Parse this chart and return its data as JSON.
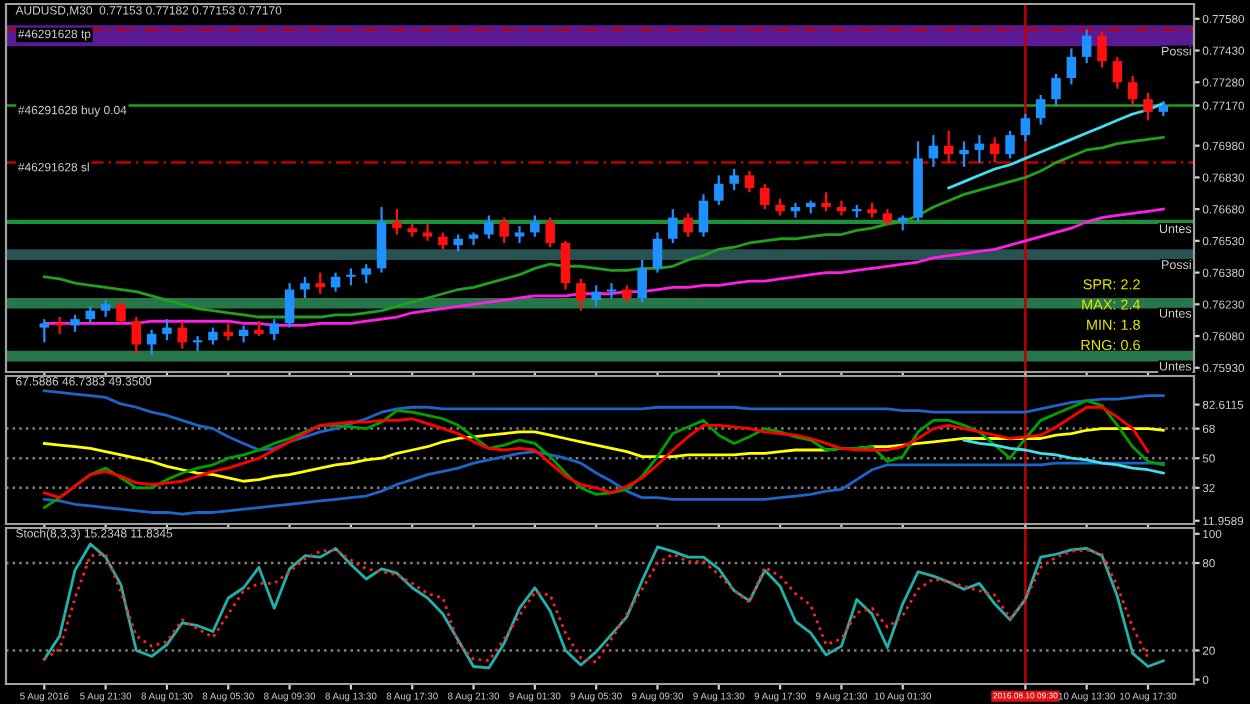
{
  "chart_data": [
    {
      "type": "candlestick",
      "title": "AUDUSD,M30  0.77153 0.77182 0.77153 0.77170",
      "categories": [
        "5 Aug 2016",
        null,
        null,
        null,
        "5 Aug 21:30",
        null,
        null,
        null,
        "8 Aug 01:30",
        null,
        null,
        null,
        "8 Aug 05:30",
        null,
        null,
        null,
        "8 Aug 09:30",
        null,
        null,
        null,
        "8 Aug 13:30",
        null,
        null,
        null,
        "8 Aug 17:30",
        null,
        null,
        null,
        "8 Aug 21:30",
        null,
        null,
        null,
        "9 Aug 01:30",
        null,
        null,
        null,
        "9 Aug 05:30",
        null,
        null,
        null,
        "9 Aug 09:30",
        null,
        null,
        null,
        "9 Aug 13:30",
        null,
        null,
        null,
        "9 Aug 17:30",
        null,
        null,
        null,
        "9 Aug 21:30",
        null,
        null,
        null,
        "10 Aug 01:30",
        null,
        null,
        null,
        null,
        null,
        null,
        null,
        "2016.08.10 09:30",
        null,
        null,
        null,
        "10 Aug 13:30",
        null,
        null,
        null,
        "10 Aug 17:30",
        null
      ],
      "ohlc": [
        [
          0.7612,
          0.7616,
          0.7605,
          0.7614
        ],
        [
          0.7614,
          0.7617,
          0.7609,
          0.7613
        ],
        [
          0.7613,
          0.7618,
          0.761,
          0.7616
        ],
        [
          0.7616,
          0.7622,
          0.7614,
          0.762
        ],
        [
          0.762,
          0.7625,
          0.7617,
          0.7623
        ],
        [
          0.7623,
          0.7624,
          0.7614,
          0.7615
        ],
        [
          0.7615,
          0.7617,
          0.76,
          0.7604
        ],
        [
          0.7604,
          0.7611,
          0.7599,
          0.7609
        ],
        [
          0.7609,
          0.7616,
          0.7606,
          0.7612
        ],
        [
          0.7612,
          0.7615,
          0.7602,
          0.7605
        ],
        [
          0.7605,
          0.7608,
          0.7601,
          0.7606
        ],
        [
          0.7606,
          0.7612,
          0.7604,
          0.761
        ],
        [
          0.761,
          0.7614,
          0.7606,
          0.7608
        ],
        [
          0.7608,
          0.7613,
          0.7605,
          0.7611
        ],
        [
          0.7611,
          0.7615,
          0.7608,
          0.7609
        ],
        [
          0.7609,
          0.7616,
          0.7606,
          0.7614
        ],
        [
          0.7614,
          0.7633,
          0.7612,
          0.763
        ],
        [
          0.763,
          0.7636,
          0.7626,
          0.7633
        ],
        [
          0.7633,
          0.7638,
          0.7628,
          0.7631
        ],
        [
          0.7631,
          0.7638,
          0.7629,
          0.7636
        ],
        [
          0.7636,
          0.764,
          0.7632,
          0.7637
        ],
        [
          0.7637,
          0.7642,
          0.7633,
          0.764
        ],
        [
          0.764,
          0.7669,
          0.7638,
          0.7662
        ],
        [
          0.7662,
          0.7668,
          0.7656,
          0.7659
        ],
        [
          0.7659,
          0.7661,
          0.7655,
          0.7657
        ],
        [
          0.7657,
          0.7661,
          0.7653,
          0.7655
        ],
        [
          0.7655,
          0.7657,
          0.7649,
          0.7651
        ],
        [
          0.7651,
          0.7656,
          0.7648,
          0.7654
        ],
        [
          0.7654,
          0.7657,
          0.7651,
          0.7656
        ],
        [
          0.7656,
          0.7665,
          0.7654,
          0.7662
        ],
        [
          0.7662,
          0.7664,
          0.7652,
          0.7655
        ],
        [
          0.7655,
          0.766,
          0.7652,
          0.7657
        ],
        [
          0.7657,
          0.7665,
          0.7655,
          0.7662
        ],
        [
          0.7662,
          0.7664,
          0.765,
          0.7652
        ],
        [
          0.7652,
          0.7653,
          0.763,
          0.7633
        ],
        [
          0.7633,
          0.7635,
          0.762,
          0.7625
        ],
        [
          0.7625,
          0.7632,
          0.7622,
          0.7629
        ],
        [
          0.7629,
          0.7633,
          0.7626,
          0.763
        ],
        [
          0.763,
          0.7632,
          0.7624,
          0.7626
        ],
        [
          0.7626,
          0.7644,
          0.7624,
          0.764
        ],
        [
          0.764,
          0.7657,
          0.7638,
          0.7654
        ],
        [
          0.7654,
          0.7668,
          0.7652,
          0.7664
        ],
        [
          0.7664,
          0.7666,
          0.7655,
          0.7657
        ],
        [
          0.7657,
          0.7675,
          0.7655,
          0.7672
        ],
        [
          0.7672,
          0.7684,
          0.767,
          0.768
        ],
        [
          0.768,
          0.7687,
          0.7677,
          0.7684
        ],
        [
          0.7684,
          0.7686,
          0.7676,
          0.7678
        ],
        [
          0.7678,
          0.768,
          0.7668,
          0.767
        ],
        [
          0.767,
          0.7673,
          0.7665,
          0.7667
        ],
        [
          0.7667,
          0.7671,
          0.7664,
          0.7669
        ],
        [
          0.7669,
          0.7672,
          0.7666,
          0.7671
        ],
        [
          0.7671,
          0.7676,
          0.7667,
          0.7669
        ],
        [
          0.7669,
          0.7672,
          0.7665,
          0.7667
        ],
        [
          0.7667,
          0.767,
          0.7664,
          0.7668
        ],
        [
          0.7668,
          0.7671,
          0.7664,
          0.7666
        ],
        [
          0.7666,
          0.7668,
          0.766,
          0.7662
        ],
        [
          0.7662,
          0.7665,
          0.7658,
          0.7664
        ],
        [
          0.7664,
          0.77,
          0.7662,
          0.7692
        ],
        [
          0.7692,
          0.7703,
          0.7688,
          0.7698
        ],
        [
          0.7698,
          0.7705,
          0.769,
          0.7694
        ],
        [
          0.7694,
          0.77,
          0.7688,
          0.7696
        ],
        [
          0.7696,
          0.7703,
          0.769,
          0.7699
        ],
        [
          0.7699,
          0.7702,
          0.769,
          0.7694
        ],
        [
          0.7694,
          0.7705,
          0.7692,
          0.7703
        ],
        [
          0.7703,
          0.7713,
          0.77,
          0.7711
        ],
        [
          0.7711,
          0.7722,
          0.7708,
          0.772
        ],
        [
          0.772,
          0.7732,
          0.7717,
          0.773
        ],
        [
          0.773,
          0.7744,
          0.7727,
          0.774
        ],
        [
          0.774,
          0.7753,
          0.7737,
          0.775
        ],
        [
          0.775,
          0.7752,
          0.7735,
          0.7738
        ],
        [
          0.7738,
          0.774,
          0.7725,
          0.7728
        ],
        [
          0.7728,
          0.7731,
          0.7717,
          0.772
        ],
        [
          0.772,
          0.7723,
          0.771,
          0.7714
        ],
        [
          0.7714,
          0.7719,
          0.7712,
          0.7717
        ]
      ],
      "series": [
        {
          "type": "line",
          "color": "#1fa01f",
          "values": [
            0.7636,
            0.7635,
            0.7633,
            0.7632,
            0.7631,
            0.763,
            0.7629,
            0.7627,
            0.7625,
            0.7623,
            0.7621,
            0.762,
            0.7619,
            0.7618,
            0.7617,
            0.7617,
            0.7617,
            0.7617,
            0.7617,
            0.7618,
            0.7618,
            0.7619,
            0.762,
            0.7622,
            0.7624,
            0.7626,
            0.7628,
            0.763,
            0.7631,
            0.7633,
            0.7635,
            0.7637,
            0.764,
            0.7642,
            0.7641,
            0.7641,
            0.764,
            0.7639,
            0.7639,
            0.764,
            0.764,
            0.7641,
            0.7644,
            0.7646,
            0.7649,
            0.765,
            0.7652,
            0.7653,
            0.7654,
            0.7654,
            0.7655,
            0.7656,
            0.7656,
            0.7658,
            0.7659,
            0.7661,
            0.7662,
            0.7665,
            0.7669,
            0.7672,
            0.7675,
            0.7677,
            0.7679,
            0.7681,
            0.7683,
            0.7686,
            0.769,
            0.7693,
            0.7696,
            0.7697,
            0.7699,
            0.77,
            0.7701,
            0.7702
          ]
        },
        {
          "type": "line",
          "color": "#ff1ee6",
          "values": [
            0.7614,
            0.7614,
            0.7614,
            0.7614,
            0.7614,
            0.7614,
            0.7614,
            0.7615,
            0.7615,
            0.7615,
            0.7615,
            0.7615,
            0.7615,
            0.7614,
            0.7614,
            0.7613,
            0.7613,
            0.7613,
            0.7614,
            0.7614,
            0.7614,
            0.7615,
            0.7616,
            0.7617,
            0.7619,
            0.762,
            0.7621,
            0.7622,
            0.7623,
            0.7624,
            0.7625,
            0.7626,
            0.7627,
            0.7627,
            0.7627,
            0.7628,
            0.7628,
            0.7628,
            0.7629,
            0.7629,
            0.763,
            0.7631,
            0.7631,
            0.7632,
            0.7632,
            0.7633,
            0.7634,
            0.7634,
            0.7635,
            0.7636,
            0.7637,
            0.7638,
            0.7638,
            0.7639,
            0.764,
            0.7641,
            0.7642,
            0.7643,
            0.7645,
            0.7646,
            0.7647,
            0.7648,
            0.7649,
            0.7651,
            0.7653,
            0.7655,
            0.7657,
            0.7659,
            0.7662,
            0.7664,
            0.7665,
            0.7666,
            0.7667,
            0.7668
          ]
        },
        {
          "type": "line",
          "color": "#40e0f0",
          "values": [
            null,
            null,
            null,
            null,
            null,
            null,
            null,
            null,
            null,
            null,
            null,
            null,
            null,
            null,
            null,
            null,
            null,
            null,
            null,
            null,
            null,
            null,
            null,
            null,
            null,
            null,
            null,
            null,
            null,
            null,
            null,
            null,
            null,
            null,
            null,
            null,
            null,
            null,
            null,
            null,
            null,
            null,
            null,
            null,
            null,
            null,
            null,
            null,
            null,
            null,
            null,
            null,
            null,
            null,
            null,
            null,
            null,
            null,
            null,
            0.7678,
            0.7681,
            0.7684,
            0.7687,
            0.7689,
            0.7692,
            0.7695,
            0.7698,
            0.7701,
            0.7704,
            0.7707,
            0.771,
            0.7713,
            0.7715,
            0.7718
          ]
        }
      ],
      "ylim": [
        0.7591,
        0.7765
      ],
      "yticks": [
        {
          "value": 0.7758,
          "label": "0.77580"
        },
        {
          "value": 0.7743,
          "label": "0.77430"
        },
        {
          "value": 0.7728,
          "label": "0.77280"
        },
        {
          "value": 0.7717,
          "label": "0.77170"
        },
        {
          "value": 0.7698,
          "label": "0.76980"
        },
        {
          "value": 0.7683,
          "label": "0.76830"
        },
        {
          "value": 0.7668,
          "label": "0.76680"
        },
        {
          "value": 0.7653,
          "label": "0.76530"
        },
        {
          "value": 0.7638,
          "label": "0.76380"
        },
        {
          "value": 0.7623,
          "label": "0.76230"
        },
        {
          "value": 0.7608,
          "label": "0.76080"
        },
        {
          "value": 0.7593,
          "label": "0.75930"
        }
      ],
      "tick_labels": "y",
      "ref_lines": [
        {
          "axis": "y",
          "value": 0.7753,
          "label": "#46291628 tp",
          "color": "#c00000",
          "line_style": "dashed"
        },
        {
          "axis": "y",
          "value": 0.7717,
          "label": "#46291628 buy 0.04",
          "color": "#1fa01f",
          "line_style": "solid"
        },
        {
          "axis": "y",
          "value": 0.769,
          "label": "#46291628 sl",
          "color": "#c00000",
          "line_style": "dashed"
        },
        {
          "axis": "x",
          "value": "2016.08.10 09:30",
          "color": "#c00000",
          "line_style": "solid"
        }
      ],
      "bands": [
        {
          "axis": "y",
          "from": 0.7745,
          "to": 0.7755,
          "label": "Possi",
          "color": "#6a1fb0"
        },
        {
          "axis": "y",
          "from": 0.7661,
          "to": 0.7663,
          "label": "Untes",
          "color": "#22aa44"
        },
        {
          "axis": "y",
          "from": 0.7644,
          "to": 0.7649,
          "label": "Possi",
          "color": "#2f5f5f"
        },
        {
          "axis": "y",
          "from": 0.7621,
          "to": 0.7626,
          "label": "Untes",
          "color": "#2e8b57"
        },
        {
          "axis": "y",
          "from": 0.7596,
          "to": 0.7601,
          "label": "Untes",
          "color": "#2e8b57"
        }
      ],
      "annotations": [
        "SPR: 2.2",
        "MAX: 2.4",
        "MIN: 1.8",
        "RNG: 0.6"
      ]
    },
    {
      "type": "line",
      "title": "67.5886 46.7383 49.3500",
      "categories": [
        "5 Aug 2016",
        null,
        null,
        null,
        "5 Aug 21:30",
        null,
        null,
        null,
        "8 Aug 01:30",
        null,
        null,
        null,
        "8 Aug 05:30",
        null,
        null,
        null,
        "8 Aug 09:30",
        null,
        null,
        null,
        "8 Aug 13:30",
        null,
        null,
        null,
        "8 Aug 17:30",
        null,
        null,
        null,
        "8 Aug 21:30",
        null,
        null,
        null,
        "9 Aug 01:30",
        null,
        null,
        null,
        "9 Aug 05:30",
        null,
        null,
        null,
        "9 Aug 09:30",
        null,
        null,
        null,
        "9 Aug 13:30",
        null,
        null,
        null,
        "9 Aug 17:30",
        null,
        null,
        null,
        "9 Aug 21:30",
        null,
        null,
        null,
        "10 Aug 01:30",
        null,
        null,
        null,
        null,
        null,
        null,
        null,
        "2016.08.10 09:30",
        null,
        null,
        null,
        "10 Aug 13:30",
        null,
        null,
        null,
        "10 Aug 17:30",
        null
      ],
      "series": [
        {
          "color": "#1e64c8",
          "values": [
            91,
            90,
            89,
            88,
            87,
            83,
            81,
            78,
            76,
            73,
            70,
            68,
            63,
            59,
            55,
            56,
            60,
            63,
            66,
            68,
            71,
            74,
            78,
            80,
            81,
            81,
            80,
            80,
            80,
            80,
            80,
            80,
            80,
            80,
            80,
            80,
            80,
            80,
            80,
            80,
            81,
            81,
            81,
            81,
            81,
            81,
            80,
            80,
            80,
            80,
            80,
            80,
            80,
            80,
            80,
            80,
            79,
            79,
            78,
            78,
            78,
            78,
            78,
            78,
            78,
            80,
            82,
            84,
            85,
            86,
            86,
            87,
            88,
            88
          ]
        },
        {
          "color": "#1e64c8",
          "values": [
            25,
            24,
            22,
            21,
            20,
            19,
            18,
            17,
            17,
            16,
            17,
            17,
            18,
            19,
            20,
            21,
            22,
            23,
            24,
            25,
            26,
            27,
            30,
            34,
            37,
            40,
            42,
            44,
            47,
            49,
            51,
            53,
            54,
            52,
            50,
            47,
            41,
            36,
            30,
            26,
            26,
            25,
            25,
            25,
            25,
            25,
            25,
            25,
            26,
            27,
            28,
            30,
            31,
            37,
            43,
            46,
            46,
            46,
            46,
            46,
            46,
            46,
            46,
            46,
            46,
            46,
            47,
            47,
            47,
            47,
            47,
            47,
            47,
            47
          ]
        },
        {
          "color": "#ffff00",
          "values": [
            59,
            58,
            57,
            56,
            54,
            52,
            50,
            48,
            45,
            43,
            41,
            40,
            38,
            36,
            37,
            39,
            40,
            42,
            44,
            46,
            47,
            49,
            50,
            53,
            55,
            57,
            60,
            62,
            63,
            64,
            65,
            66,
            66,
            64,
            62,
            60,
            58,
            56,
            54,
            51,
            51,
            51,
            52,
            52,
            52,
            52,
            53,
            53,
            54,
            55,
            55,
            55,
            56,
            56,
            57,
            57,
            58,
            59,
            60,
            61,
            62,
            62,
            62,
            62,
            62,
            62,
            64,
            65,
            67,
            68,
            68,
            68,
            68,
            67
          ]
        },
        {
          "color": "#00a000",
          "values": [
            20,
            26,
            33,
            40,
            44,
            38,
            32,
            32,
            37,
            41,
            44,
            46,
            50,
            52,
            55,
            59,
            62,
            66,
            70,
            70,
            69,
            68,
            72,
            79,
            78,
            76,
            74,
            70,
            63,
            56,
            58,
            61,
            59,
            51,
            41,
            32,
            28,
            29,
            31,
            39,
            51,
            65,
            69,
            73,
            64,
            59,
            63,
            68,
            66,
            63,
            61,
            55,
            56,
            56,
            57,
            48,
            51,
            66,
            73,
            73,
            70,
            66,
            58,
            50,
            62,
            73,
            77,
            81,
            85,
            82,
            70,
            57,
            48,
            46
          ]
        },
        {
          "color": "#ff0000",
          "values": [
            29,
            26,
            33,
            40,
            42,
            39,
            35,
            34,
            35,
            36,
            39,
            42,
            44,
            47,
            50,
            55,
            60,
            65,
            70,
            71,
            72,
            72,
            73,
            73,
            74,
            71,
            68,
            65,
            60,
            56,
            55,
            56,
            55,
            47,
            39,
            34,
            32,
            29,
            33,
            38,
            46,
            55,
            63,
            70,
            70,
            69,
            68,
            66,
            65,
            64,
            62,
            59,
            56,
            55,
            55,
            55,
            57,
            62,
            68,
            70,
            68,
            66,
            64,
            62,
            63,
            64,
            69,
            75,
            81,
            81,
            75,
            68,
            54,
            null
          ]
        },
        {
          "color": "#40e0f0",
          "values": [
            null,
            null,
            null,
            null,
            null,
            null,
            null,
            null,
            null,
            null,
            null,
            null,
            null,
            null,
            null,
            null,
            null,
            null,
            null,
            null,
            null,
            null,
            null,
            null,
            null,
            null,
            null,
            null,
            null,
            null,
            null,
            null,
            null,
            null,
            null,
            null,
            null,
            null,
            null,
            null,
            null,
            null,
            null,
            null,
            null,
            null,
            null,
            null,
            null,
            null,
            null,
            null,
            null,
            null,
            null,
            null,
            null,
            null,
            null,
            null,
            61,
            59,
            58,
            56,
            55,
            53,
            52,
            50,
            49,
            47,
            46,
            44,
            43,
            41
          ]
        }
      ],
      "ylim": [
        10,
        100
      ],
      "yticks": [
        {
          "value": 11.9589,
          "label": "11.9589"
        },
        32,
        50,
        68,
        {
          "value": 82.6115,
          "label": "82.6115"
        }
      ],
      "tick_labels": "y",
      "ref_lines": [
        {
          "axis": "y",
          "value": 68,
          "color": "#808080",
          "line_style": "dotted"
        },
        {
          "axis": "y",
          "value": 50,
          "color": "#808080",
          "line_style": "dotted"
        },
        {
          "axis": "y",
          "value": 32,
          "color": "#808080",
          "line_style": "dotted"
        },
        {
          "axis": "x",
          "value": "2016.08.10 09:30",
          "color": "#c00000",
          "line_style": "solid"
        }
      ]
    },
    {
      "type": "line",
      "title": "Stoch(8,3,3) 15.2348 11.8345",
      "categories": [
        "5 Aug 2016",
        null,
        null,
        null,
        "5 Aug 21:30",
        null,
        null,
        null,
        "8 Aug 01:30",
        null,
        null,
        null,
        "8 Aug 05:30",
        null,
        null,
        null,
        "8 Aug 09:30",
        null,
        null,
        null,
        "8 Aug 13:30",
        null,
        null,
        null,
        "8 Aug 17:30",
        null,
        null,
        null,
        "8 Aug 21:30",
        null,
        null,
        null,
        "9 Aug 01:30",
        null,
        null,
        null,
        "9 Aug 05:30",
        null,
        null,
        null,
        "9 Aug 09:30",
        null,
        null,
        null,
        "9 Aug 13:30",
        null,
        null,
        null,
        "9 Aug 17:30",
        null,
        null,
        null,
        "9 Aug 21:30",
        null,
        null,
        null,
        "10 Aug 01:30",
        null,
        null,
        null,
        null,
        null,
        null,
        null,
        "2016.08.10 09:30",
        null,
        null,
        null,
        "10 Aug 13:30",
        null,
        null,
        null,
        "10 Aug 17:30",
        null
      ],
      "series": [
        {
          "color": "#20b2aa",
          "line_style": "solid",
          "values": [
            14,
            30,
            75,
            93,
            84,
            65,
            20,
            16,
            24,
            39,
            37,
            33,
            56,
            63,
            77,
            49,
            76,
            85,
            84,
            90,
            79,
            69,
            76,
            73,
            63,
            56,
            45,
            27,
            9,
            8,
            25,
            49,
            63,
            47,
            20,
            10,
            19,
            31,
            43,
            68,
            91,
            88,
            84,
            84,
            76,
            61,
            54,
            75,
            64,
            40,
            32,
            17,
            23,
            55,
            45,
            22,
            52,
            74,
            71,
            67,
            62,
            66,
            52,
            41,
            55,
            84,
            86,
            89,
            90,
            85,
            57,
            18,
            9,
            13
          ]
        },
        {
          "color": "#ff2020",
          "line_style": "dotted",
          "values": [
            14,
            21,
            56,
            85,
            86,
            60,
            30,
            23,
            26,
            41,
            35,
            29,
            45,
            61,
            66,
            66,
            74,
            83,
            88,
            89,
            82,
            76,
            74,
            72,
            66,
            59,
            56,
            25,
            14,
            13,
            28,
            44,
            60,
            58,
            32,
            15,
            12,
            28,
            45,
            62,
            80,
            86,
            81,
            81,
            72,
            61,
            53,
            77,
            71,
            59,
            51,
            24,
            28,
            46,
            49,
            36,
            44,
            62,
            69,
            67,
            64,
            61,
            58,
            42,
            55,
            77,
            84,
            88,
            89,
            86,
            64,
            36,
            15,
            null
          ]
        }
      ],
      "ylim": [
        -3,
        104
      ],
      "yticks": [
        0,
        20,
        80,
        100
      ],
      "ref_lines": [
        {
          "axis": "y",
          "value": 80,
          "color": "#808080",
          "line_style": "dotted"
        },
        {
          "axis": "y",
          "value": 20,
          "color": "#808080",
          "line_style": "dotted"
        },
        {
          "axis": "x",
          "value": "2016.08.10 09:30",
          "color": "#c00000",
          "line_style": "solid"
        }
      ]
    }
  ]
}
